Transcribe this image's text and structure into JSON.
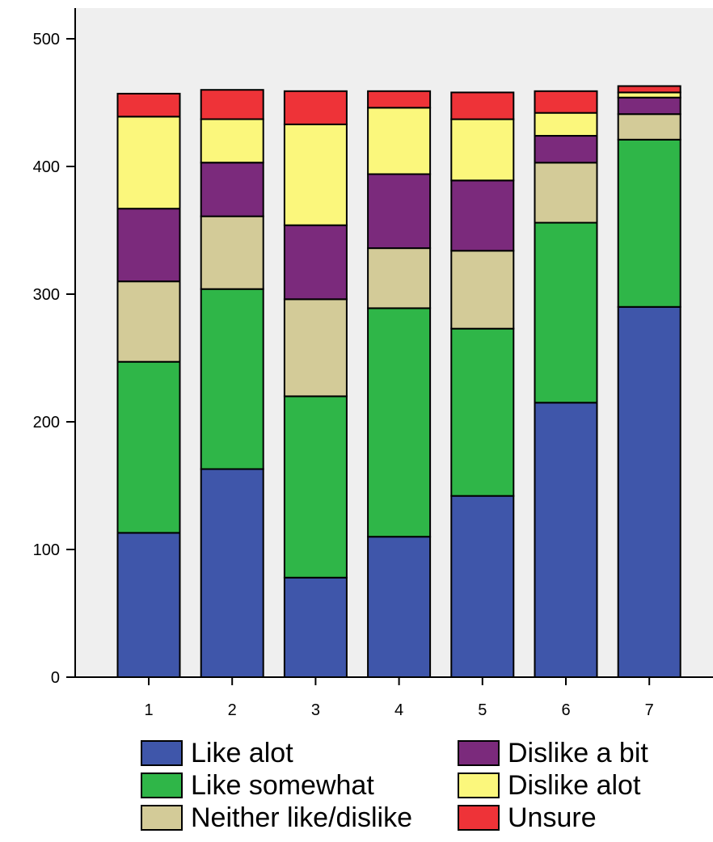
{
  "chart_data": {
    "type": "bar",
    "stacked": true,
    "categories": [
      "1",
      "2",
      "3",
      "4",
      "5",
      "6",
      "7"
    ],
    "ylim": [
      0,
      500
    ],
    "yticks": [
      "0",
      "100",
      "200",
      "300",
      "400",
      "500"
    ],
    "grid": false,
    "legend_position": "bottom",
    "plot_background": "#efefef",
    "series": [
      {
        "name": "Like alot",
        "color": "#3f56aa",
        "values": [
          113,
          163,
          78,
          110,
          142,
          215,
          290
        ]
      },
      {
        "name": "Like somewhat",
        "color": "#2fb648",
        "values": [
          134,
          141,
          142,
          179,
          131,
          141,
          131
        ]
      },
      {
        "name": "Neither like/dislike",
        "color": "#d3cb98",
        "values": [
          63,
          57,
          76,
          47,
          61,
          47,
          20
        ]
      },
      {
        "name": "Dislike a bit",
        "color": "#7b2a7c",
        "values": [
          57,
          42,
          58,
          58,
          55,
          21,
          13
        ]
      },
      {
        "name": "Dislike alot",
        "color": "#fbf77c",
        "values": [
          72,
          34,
          79,
          52,
          48,
          18,
          4
        ]
      },
      {
        "name": "Unsure",
        "color": "#ee3338",
        "values": [
          18,
          23,
          26,
          13,
          21,
          17,
          5
        ]
      }
    ]
  }
}
